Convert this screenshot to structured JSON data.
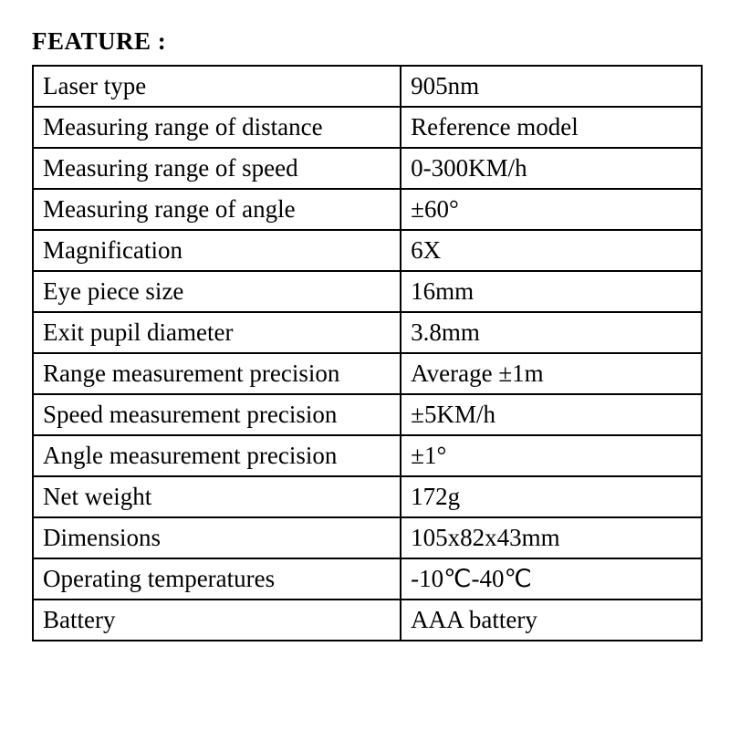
{
  "title": "FEATURE :",
  "table": {
    "border_color": "#000000",
    "background_color": "#ffffff",
    "font_family": "Times New Roman",
    "title_fontsize": 27,
    "cell_fontsize": 27,
    "col_widths_pct": [
      55,
      45
    ],
    "rows": [
      {
        "label": "Laser type",
        "value": "905nm"
      },
      {
        "label": "Measuring range of distance",
        "value": "Reference model"
      },
      {
        "label": "Measuring range of speed",
        "value": "0-300KM/h"
      },
      {
        "label": "Measuring range of angle",
        "value": "±60°"
      },
      {
        "label": "Magnification",
        "value": "6X"
      },
      {
        "label": "Eye piece size",
        "value": "16mm"
      },
      {
        "label": "Exit pupil diameter",
        "value": "3.8mm"
      },
      {
        "label": "Range measurement precision",
        "value": "Average ±1m"
      },
      {
        "label": "Speed measurement precision",
        "value": "±5KM/h"
      },
      {
        "label": "Angle measurement precision",
        "value": "±1°"
      },
      {
        "label": "Net weight",
        "value": "172g"
      },
      {
        "label": "Dimensions",
        "value": "105x82x43mm"
      },
      {
        "label": "Operating temperatures",
        "value": "-10℃-40℃"
      },
      {
        "label": "Battery",
        "value": "AAA battery"
      }
    ]
  }
}
